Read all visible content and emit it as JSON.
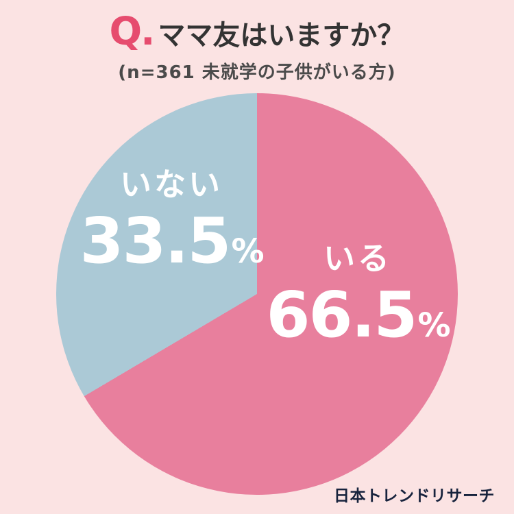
{
  "header": {
    "q_mark": "Q.",
    "title": "ママ友はいますか？",
    "subtitle": "(n=361 未就学の子供がいる方)"
  },
  "chart_data": {
    "type": "pie",
    "title": "ママ友はいますか？",
    "subtitle": "(n=361 未就学の子供がいる方)",
    "sample_size_note": "n=361",
    "categories": [
      "いる",
      "いない"
    ],
    "values": [
      66.5,
      33.5
    ],
    "unit": "%",
    "colors": [
      "#e87f9d",
      "#abc9d6"
    ],
    "start_angle_deg": 0,
    "direction": "clockwise",
    "legend_position": "on-slice",
    "labels": [
      {
        "name": "いる",
        "value": "66.5",
        "unit": "%"
      },
      {
        "name": "いない",
        "value": "33.5",
        "unit": "%"
      }
    ]
  },
  "footer": {
    "brand": "日本トレンドリサーチ"
  },
  "colors": {
    "background": "#fbe3e3",
    "accent_q": "#e64c6e",
    "slice_iru": "#e87f9d",
    "slice_inai": "#abc9d6",
    "title_text": "#333333",
    "subtitle_text": "#4a4a4a",
    "label_text": "#ffffff",
    "brand_text": "#17233d"
  }
}
